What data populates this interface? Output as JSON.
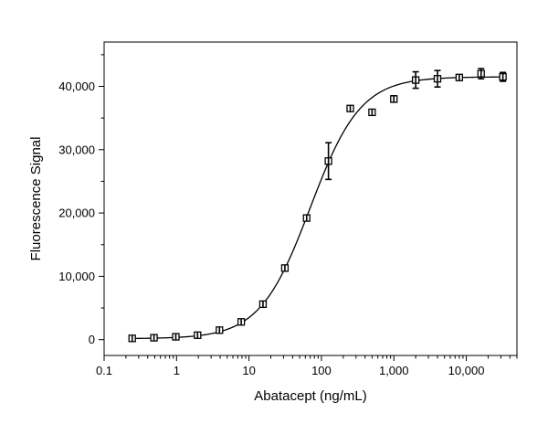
{
  "chart_data": {
    "type": "scatter",
    "title": "",
    "xlabel": "Abatacept (ng/mL)",
    "ylabel": "Fluorescence Signal",
    "x_scale": "log",
    "xlim": [
      0.1,
      50000
    ],
    "ylim": [
      -2500,
      47000
    ],
    "x_ticks": [
      {
        "value": 0.1,
        "label": "0.1"
      },
      {
        "value": 1,
        "label": "1"
      },
      {
        "value": 10,
        "label": "10"
      },
      {
        "value": 100,
        "label": "100"
      },
      {
        "value": 1000,
        "label": "1,000"
      },
      {
        "value": 10000,
        "label": "10,000"
      }
    ],
    "y_ticks": [
      {
        "value": 0,
        "label": "0"
      },
      {
        "value": 10000,
        "label": "10,000"
      },
      {
        "value": 20000,
        "label": "20,000"
      },
      {
        "value": 30000,
        "label": "30,000"
      },
      {
        "value": 40000,
        "label": "40,000"
      }
    ],
    "grid": false,
    "legend": "none",
    "marker": "open-square",
    "series": [
      {
        "points": [
          {
            "x": 0.244,
            "y": 200,
            "err": 120
          },
          {
            "x": 0.488,
            "y": 300,
            "err": 120
          },
          {
            "x": 0.977,
            "y": 450,
            "err": 150
          },
          {
            "x": 1.95,
            "y": 700,
            "err": 150
          },
          {
            "x": 3.91,
            "y": 1500,
            "err": 200
          },
          {
            "x": 7.81,
            "y": 2800,
            "err": 200
          },
          {
            "x": 15.6,
            "y": 5600,
            "err": 250
          },
          {
            "x": 31.3,
            "y": 11300,
            "err": 300
          },
          {
            "x": 62.5,
            "y": 19200,
            "err": 300
          },
          {
            "x": 125,
            "y": 28200,
            "err": 2900
          },
          {
            "x": 250,
            "y": 36500,
            "err": 300
          },
          {
            "x": 500,
            "y": 35900,
            "err": 300
          },
          {
            "x": 1000,
            "y": 38000,
            "err": 500
          },
          {
            "x": 2000,
            "y": 41000,
            "err": 1300
          },
          {
            "x": 4000,
            "y": 41200,
            "err": 1300
          },
          {
            "x": 8000,
            "y": 41400,
            "err": 400
          },
          {
            "x": 16000,
            "y": 42000,
            "err": 800
          },
          {
            "x": 32000,
            "y": 41500,
            "err": 700
          }
        ]
      }
    ],
    "fit": {
      "model": "4PL",
      "bottom": 150,
      "top": 41500,
      "ec50": 70,
      "hill": 1.25
    }
  }
}
